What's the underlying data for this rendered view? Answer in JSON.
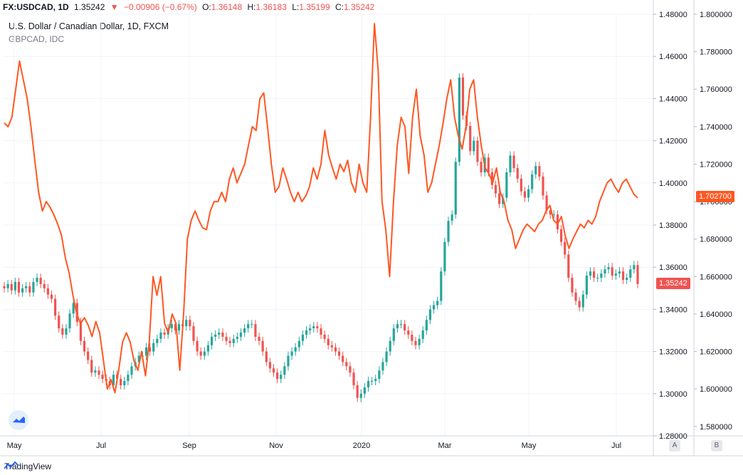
{
  "header": {
    "symbol": "FX:USDCAD, 1D",
    "last": "1.35242",
    "arrow": "▼",
    "change": "−0.00906 (−0.67%)",
    "open_label": "O:",
    "open": "1.36148",
    "high_label": "H:",
    "high": "1.36183",
    "low_label": "L:",
    "low": "1.35199",
    "close_label": "C:",
    "close": "1.35242"
  },
  "legend": {
    "main_title": "U.S. Dollar / Canadian Dollar, 1D, FXCM",
    "compare_title": "GBPCAD, IDC"
  },
  "price_tags": {
    "usdcad": "1.35242",
    "gbpcad": "1.702700"
  },
  "scale_buttons": {
    "a": "A",
    "b": "B"
  },
  "footer": {
    "brand": "TradingView"
  },
  "colors": {
    "up": "#26a69a",
    "down": "#ef5350",
    "compare": "#ff5722",
    "grid": "#f0f3fa"
  },
  "chart_data": {
    "type": "line",
    "x_ticks": [
      "May",
      "Jul",
      "Sep",
      "Nov",
      "2020",
      "Mar",
      "May",
      "Jul"
    ],
    "y_left_axis": {
      "ticks": [
        "1.48000",
        "1.46000",
        "1.44000",
        "1.42000",
        "1.40000",
        "1.38000",
        "1.36000",
        "1.34000",
        "1.32000",
        "1.30000",
        "1.28000"
      ],
      "ylim": [
        1.28,
        1.48
      ]
    },
    "y_right_axis": {
      "ticks": [
        "1.800000",
        "1.780000",
        "1.760000",
        "1.740000",
        "1.720000",
        "1.700000",
        "1.680000",
        "1.660000",
        "1.640000",
        "1.620000",
        "1.600000",
        "1.580000"
      ],
      "ylim": [
        1.575,
        1.8
      ]
    },
    "series": [
      {
        "name": "FX:USDCAD",
        "style": "candles",
        "values": [
          1.35,
          1.352,
          1.349,
          1.353,
          1.348,
          1.35,
          1.351,
          1.348,
          1.353,
          1.355,
          1.352,
          1.35,
          1.347,
          1.345,
          1.337,
          1.331,
          1.328,
          1.331,
          1.338,
          1.343,
          1.334,
          1.325,
          1.32,
          1.316,
          1.31,
          1.311,
          1.309,
          1.307,
          1.306,
          1.304,
          1.309,
          1.307,
          1.304,
          1.306,
          1.309,
          1.313,
          1.315,
          1.318,
          1.318,
          1.322,
          1.32,
          1.324,
          1.326,
          1.329,
          1.328,
          1.331,
          1.333,
          1.33,
          1.333,
          1.332,
          1.335,
          1.332,
          1.325,
          1.32,
          1.318,
          1.32,
          1.323,
          1.327,
          1.328,
          1.329,
          1.327,
          1.325,
          1.324,
          1.326,
          1.327,
          1.329,
          1.331,
          1.333,
          1.333,
          1.327,
          1.325,
          1.32,
          1.315,
          1.312,
          1.31,
          1.307,
          1.309,
          1.313,
          1.318,
          1.32,
          1.322,
          1.325,
          1.328,
          1.33,
          1.331,
          1.332,
          1.331,
          1.328,
          1.326,
          1.323,
          1.322,
          1.32,
          1.318,
          1.315,
          1.313,
          1.31,
          1.304,
          1.298,
          1.3,
          1.303,
          1.306,
          1.306,
          1.307,
          1.311,
          1.315,
          1.32,
          1.325,
          1.331,
          1.333,
          1.333,
          1.33,
          1.328,
          1.325,
          1.323,
          1.326,
          1.33,
          1.335,
          1.34,
          1.342,
          1.344,
          1.358,
          1.372,
          1.382,
          1.385,
          1.41,
          1.45,
          1.432,
          1.427,
          1.415,
          1.42,
          1.41,
          1.405,
          1.412,
          1.405,
          1.399,
          1.395,
          1.39,
          1.393,
          1.405,
          1.413,
          1.407,
          1.402,
          1.396,
          1.393,
          1.397,
          1.404,
          1.408,
          1.403,
          1.394,
          1.387,
          1.385,
          1.385,
          1.378,
          1.372,
          1.366,
          1.355,
          1.348,
          1.344,
          1.341,
          1.347,
          1.356,
          1.358,
          1.355,
          1.355,
          1.357,
          1.359,
          1.36,
          1.356,
          1.357,
          1.358,
          1.354,
          1.355,
          1.359,
          1.361,
          1.352
        ]
      },
      {
        "name": "GBPCAD, IDC",
        "style": "line",
        "values": [
          1.742,
          1.74,
          1.745,
          1.76,
          1.775,
          1.765,
          1.755,
          1.74,
          1.722,
          1.705,
          1.695,
          1.7,
          1.697,
          1.693,
          1.688,
          1.682,
          1.67,
          1.662,
          1.65,
          1.64,
          1.635,
          1.638,
          1.634,
          1.628,
          1.636,
          1.63,
          1.615,
          1.6,
          1.605,
          1.598,
          1.61,
          1.625,
          1.63,
          1.625,
          1.615,
          1.61,
          1.62,
          1.607,
          1.625,
          1.66,
          1.65,
          1.66,
          1.635,
          1.63,
          1.64,
          1.635,
          1.61,
          1.64,
          1.68,
          1.69,
          1.695,
          1.69,
          1.686,
          1.685,
          1.695,
          1.7,
          1.7,
          1.705,
          1.7,
          1.712,
          1.718,
          1.71,
          1.715,
          1.72,
          1.73,
          1.74,
          1.738,
          1.755,
          1.758,
          1.74,
          1.72,
          1.705,
          1.708,
          1.718,
          1.712,
          1.705,
          1.7,
          1.705,
          1.7,
          1.703,
          1.708,
          1.718,
          1.712,
          1.72,
          1.738,
          1.725,
          1.718,
          1.712,
          1.72,
          1.716,
          1.722,
          1.71,
          1.705,
          1.72,
          1.71,
          1.705,
          1.745,
          1.795,
          1.77,
          1.7,
          1.685,
          1.66,
          1.7,
          1.73,
          1.745,
          1.74,
          1.715,
          1.745,
          1.76,
          1.735,
          1.725,
          1.705,
          1.71,
          1.72,
          1.73,
          1.742,
          1.755,
          1.765,
          1.745,
          1.735,
          1.728,
          1.74,
          1.76,
          1.765,
          1.745,
          1.73,
          1.718,
          1.715,
          1.71,
          1.718,
          1.705,
          1.7,
          1.69,
          1.685,
          1.675,
          1.68,
          1.685,
          1.688,
          1.686,
          1.684,
          1.688,
          1.69,
          1.695,
          1.698,
          1.69,
          1.688,
          1.692,
          1.682,
          1.675,
          1.68,
          1.684,
          1.688,
          1.686,
          1.69,
          1.688,
          1.692,
          1.7,
          1.705,
          1.71,
          1.712,
          1.708,
          1.705,
          1.71,
          1.712,
          1.708,
          1.704,
          1.702
        ]
      }
    ]
  }
}
